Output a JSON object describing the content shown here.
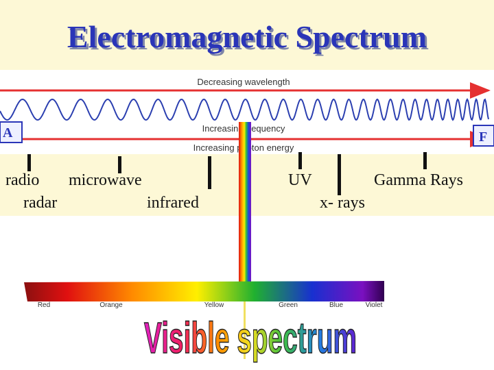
{
  "title": "Electromagnetic Spectrum",
  "arrows": {
    "wavelength": "Decreasing wavelength",
    "frequency": "Increasing frequency",
    "energy": "Increasing photon energy"
  },
  "ends": {
    "left": "A",
    "right": "F"
  },
  "bands": {
    "radio": "radio",
    "microwave": "microwave",
    "radar": "radar",
    "infrared": "infrared",
    "uv": "UV",
    "xrays": "x- rays",
    "gamma": "Gamma Rays"
  },
  "colors": [
    "Red",
    "Orange",
    "Yellow",
    "Green",
    "Blue",
    "Violet"
  ],
  "visible": "Visible spectrum"
}
